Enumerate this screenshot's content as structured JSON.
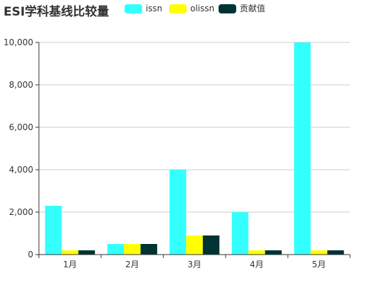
{
  "chart_data": {
    "type": "bar",
    "title": "ESI学科基线比较量",
    "categories": [
      "1月",
      "2月",
      "3月",
      "4月",
      "5月"
    ],
    "series": [
      {
        "name": "issn",
        "color": "#33ffff",
        "values": [
          2300,
          500,
          4000,
          2000,
          10000
        ]
      },
      {
        "name": "olissn",
        "color": "#ffff00",
        "values": [
          200,
          500,
          900,
          200,
          200
        ]
      },
      {
        "name": "贡献值",
        "color": "#003333",
        "values": [
          200,
          500,
          900,
          200,
          200
        ]
      }
    ],
    "yticks": [
      "0",
      "2,000",
      "4,000",
      "6,000",
      "8,000",
      "10,000"
    ],
    "ylim": [
      0,
      10000
    ],
    "grid": true,
    "legend_position": "top"
  }
}
